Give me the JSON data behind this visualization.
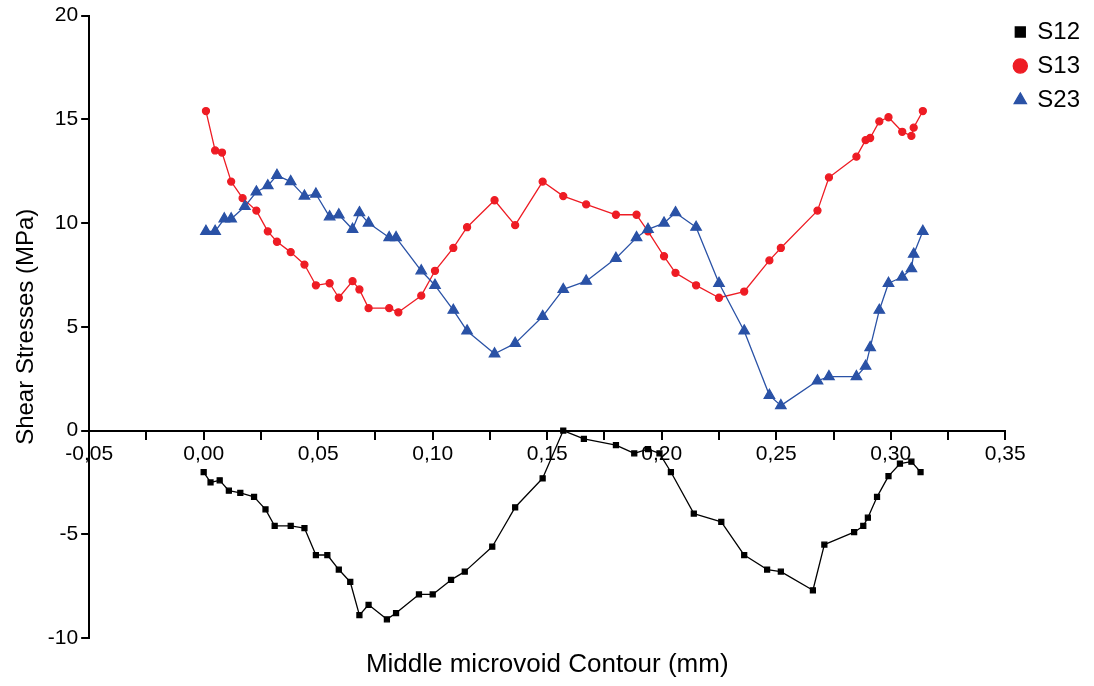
{
  "chart_data": {
    "type": "line",
    "xlabel": "Middle microvoid Contour (mm)",
    "ylabel": "Shear Stresses (MPa)",
    "xlim": [
      -0.05,
      0.35
    ],
    "ylim": [
      -10,
      20
    ],
    "xticks": [
      {
        "value": -0.05,
        "label": "-0,05"
      },
      {
        "value": -0.025,
        "label": null
      },
      {
        "value": 0,
        "label": "0,00"
      },
      {
        "value": 0.025,
        "label": null
      },
      {
        "value": 0.05,
        "label": "0,05"
      },
      {
        "value": 0.075,
        "label": null
      },
      {
        "value": 0.1,
        "label": "0,10"
      },
      {
        "value": 0.125,
        "label": null
      },
      {
        "value": 0.15,
        "label": "0,15"
      },
      {
        "value": 0.175,
        "label": null
      },
      {
        "value": 0.2,
        "label": "0,20"
      },
      {
        "value": 0.225,
        "label": null
      },
      {
        "value": 0.25,
        "label": "0,25"
      },
      {
        "value": 0.275,
        "label": null
      },
      {
        "value": 0.3,
        "label": "0,30"
      },
      {
        "value": 0.325,
        "label": null
      },
      {
        "value": 0.35,
        "label": "0,35"
      }
    ],
    "yticks": [
      -10,
      -5,
      0,
      5,
      10,
      15,
      20
    ],
    "grid": false,
    "legend": "top right",
    "line_style": "solid",
    "series": [
      {
        "name": "S12",
        "color": "#000000",
        "marker": "square",
        "x": [
          0,
          0.003,
          0.007,
          0.011,
          0.016,
          0.022,
          0.027,
          0.031,
          0.038,
          0.044,
          0.049,
          0.054,
          0.059,
          0.064,
          0.068,
          0.072,
          0.08,
          0.084,
          0.094,
          0.1,
          0.108,
          0.114,
          0.126,
          0.136,
          0.148,
          0.157,
          0.166,
          0.18,
          0.188,
          0.194,
          0.199,
          0.204,
          0.214,
          0.226,
          0.236,
          0.246,
          0.252,
          0.266,
          0.271,
          0.284,
          0.288,
          0.29,
          0.294,
          0.299,
          0.304,
          0.309,
          0.313
        ],
        "values": [
          -2,
          -2.5,
          -2.4,
          -2.9,
          -3,
          -3.2,
          -3.8,
          -4.6,
          -4.6,
          -4.7,
          -6,
          -6,
          -6.7,
          -7.3,
          -8.9,
          -8.4,
          -9.1,
          -8.8,
          -7.9,
          -7.9,
          -7.2,
          -6.8,
          -5.6,
          -3.7,
          -2.3,
          0,
          -0.4,
          -0.7,
          -1.1,
          -0.9,
          -1.1,
          -2,
          -4,
          -4.4,
          -6,
          -6.7,
          -6.8,
          -7.7,
          -5.5,
          -4.9,
          -4.6,
          -4.2,
          -3.2,
          -2.2,
          -1.6,
          -1.5,
          -2
        ]
      },
      {
        "name": "S13",
        "color": "#ee1c24",
        "marker": "circle",
        "x": [
          0.001,
          0.005,
          0.008,
          0.012,
          0.017,
          0.023,
          0.028,
          0.032,
          0.038,
          0.044,
          0.049,
          0.055,
          0.059,
          0.065,
          0.068,
          0.072,
          0.081,
          0.085,
          0.095,
          0.101,
          0.109,
          0.115,
          0.127,
          0.136,
          0.148,
          0.157,
          0.167,
          0.18,
          0.189,
          0.194,
          0.201,
          0.206,
          0.215,
          0.225,
          0.236,
          0.247,
          0.252,
          0.268,
          0.273,
          0.285,
          0.289,
          0.291,
          0.295,
          0.299,
          0.305,
          0.309,
          0.31,
          0.314
        ],
        "values": [
          15.4,
          13.5,
          13.4,
          12,
          11.2,
          10.6,
          9.6,
          9.1,
          8.6,
          8,
          7,
          7.1,
          6.4,
          7.2,
          6.8,
          5.9,
          5.9,
          5.7,
          6.5,
          7.7,
          8.8,
          9.8,
          11.1,
          9.9,
          12,
          11.3,
          10.9,
          10.4,
          10.4,
          9.6,
          8.4,
          7.6,
          7,
          6.4,
          6.7,
          8.2,
          8.8,
          10.6,
          12.2,
          13.2,
          14,
          14.1,
          14.9,
          15.1,
          14.4,
          14.2,
          14.6,
          15.4
        ]
      },
      {
        "name": "S23",
        "color": "#2a52a6",
        "marker": "triangle",
        "x": [
          0.001,
          0.005,
          0.009,
          0.012,
          0.018,
          0.023,
          0.028,
          0.032,
          0.038,
          0.044,
          0.049,
          0.055,
          0.059,
          0.065,
          0.068,
          0.072,
          0.081,
          0.084,
          0.095,
          0.101,
          0.109,
          0.115,
          0.127,
          0.136,
          0.148,
          0.157,
          0.167,
          0.18,
          0.189,
          0.194,
          0.201,
          0.206,
          0.215,
          0.225,
          0.236,
          0.247,
          0.252,
          0.268,
          0.273,
          0.285,
          0.289,
          0.291,
          0.295,
          0.299,
          0.305,
          0.309,
          0.31,
          0.314
        ],
        "values": [
          9.6,
          9.6,
          10.2,
          10.2,
          10.8,
          11.5,
          11.8,
          12.3,
          12,
          11.3,
          11.4,
          10.3,
          10.4,
          9.7,
          10.5,
          10,
          9.3,
          9.3,
          7.7,
          7,
          5.8,
          4.8,
          3.7,
          4.2,
          5.5,
          6.8,
          7.2,
          8.3,
          9.3,
          9.7,
          10,
          10.5,
          9.8,
          7.1,
          4.8,
          1.7,
          1.2,
          2.4,
          2.6,
          2.6,
          3.1,
          4,
          5.8,
          7.1,
          7.4,
          7.8,
          8.5,
          9.6
        ]
      }
    ]
  }
}
